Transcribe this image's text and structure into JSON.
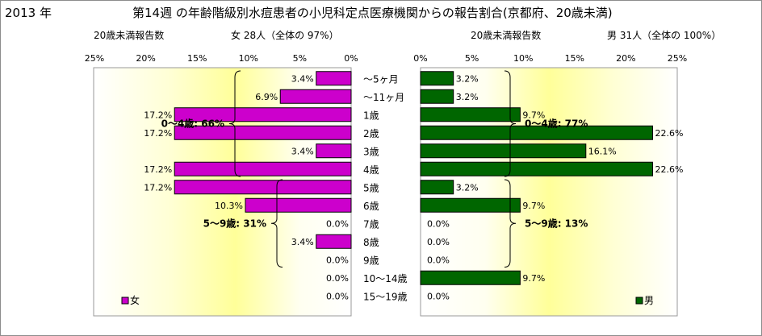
{
  "header": {
    "year": "2013 年",
    "title": "第14週 の年齢階級別水痘患者の小児科定点医療機関からの報告割合(京都府、20歳未満)",
    "female_subtitle": "20歳未満報告数",
    "female_total": "女  28人（全体の  97%）",
    "male_subtitle": "20歳未満報告数",
    "male_total": "男  31人（全体の  100%）"
  },
  "chart_data": [
    {
      "type": "bar",
      "orientation": "horizontal",
      "direction": "right-to-left",
      "categories": [
        "～5ヶ月",
        "～11ヶ月",
        "1歳",
        "2歳",
        "3歳",
        "4歳",
        "5歳",
        "6歳",
        "7歳",
        "8歳",
        "9歳",
        "10～14歳",
        "15～19歳"
      ],
      "series": [
        {
          "name": "女",
          "values": [
            3.4,
            6.9,
            17.2,
            17.2,
            3.4,
            17.2,
            17.2,
            10.3,
            0.0,
            3.4,
            0.0,
            0.0,
            0.0
          ]
        }
      ],
      "data_labels": [
        "3.4%",
        "6.9%",
        "17.2%",
        "17.2%",
        "3.4%",
        "17.2%",
        "17.2%",
        "10.3%",
        "0.0%",
        "3.4%",
        "0.0%",
        "0.0%",
        "0.0%"
      ],
      "xlim": [
        0,
        25
      ],
      "x_ticks": [
        0,
        5,
        10,
        15,
        20,
        25
      ],
      "x_tick_labels": [
        "0%",
        "5%",
        "10%",
        "15%",
        "20%",
        "25%"
      ],
      "group_labels": [
        {
          "text": "0～4歳: 66%",
          "rows": [
            0,
            5
          ]
        },
        {
          "text": "5～9歳: 31%",
          "rows": [
            6,
            10
          ]
        }
      ],
      "legend": {
        "label": "女",
        "position": "bottom-left"
      },
      "color": "#cc00cc",
      "grid": false
    },
    {
      "type": "bar",
      "orientation": "horizontal",
      "direction": "left-to-right",
      "categories": [
        "～5ヶ月",
        "～11ヶ月",
        "1歳",
        "2歳",
        "3歳",
        "4歳",
        "5歳",
        "6歳",
        "7歳",
        "8歳",
        "9歳",
        "10～14歳",
        "15～19歳"
      ],
      "series": [
        {
          "name": "男",
          "values": [
            3.2,
            3.2,
            9.7,
            22.6,
            16.1,
            22.6,
            3.2,
            9.7,
            0.0,
            0.0,
            0.0,
            9.7,
            0.0
          ]
        }
      ],
      "data_labels": [
        "3.2%",
        "3.2%",
        "9.7%",
        "22.6%",
        "16.1%",
        "22.6%",
        "3.2%",
        "9.7%",
        "0.0%",
        "0.0%",
        "0.0%",
        "9.7%",
        "0.0%"
      ],
      "xlim": [
        0,
        25
      ],
      "x_ticks": [
        0,
        5,
        10,
        15,
        20,
        25
      ],
      "x_tick_labels": [
        "0%",
        "5%",
        "10%",
        "15%",
        "20%",
        "25%"
      ],
      "group_labels": [
        {
          "text": "0～4歳: 77%",
          "rows": [
            0,
            5
          ]
        },
        {
          "text": "5～9歳: 13%",
          "rows": [
            6,
            10
          ]
        }
      ],
      "legend": {
        "label": "男",
        "position": "bottom-right"
      },
      "color": "#006600",
      "grid": false
    }
  ],
  "colors": {
    "female": "#cc00cc",
    "male": "#006600",
    "plot_gradient_edge": "#ffffcc",
    "plot_gradient_center": "#ffffff"
  }
}
